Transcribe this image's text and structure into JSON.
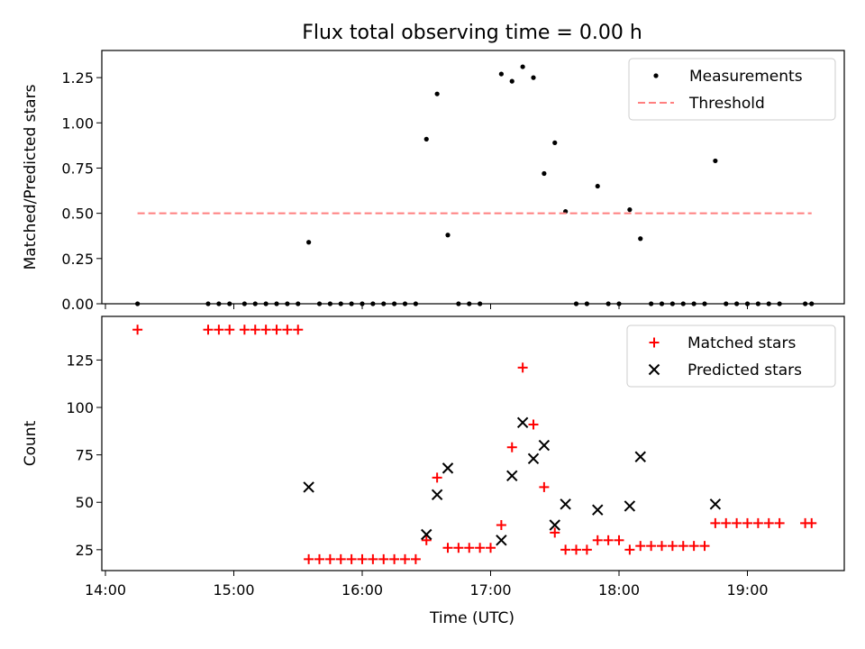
{
  "title": "Flux total observing time = 0.00 h",
  "xlabel": "Time (UTC)",
  "x_ticks": [
    {
      "t": "14:00",
      "label": "14:00"
    },
    {
      "t": "15:00",
      "label": "15:00"
    },
    {
      "t": "16:00",
      "label": "16:00"
    },
    {
      "t": "17:00",
      "label": "17:00"
    },
    {
      "t": "18:00",
      "label": "18:00"
    },
    {
      "t": "19:00",
      "label": "19:00"
    }
  ],
  "colors": {
    "measurements": "#000000",
    "threshold": "#ff7f7f",
    "matched": "#ff0000",
    "predicted": "#000000"
  },
  "chart_data": [
    {
      "type": "scatter",
      "ylabel": "Matched/Predicted stars",
      "ylim": [
        0,
        1.4
      ],
      "xlim": [
        "14:00",
        "19:45"
      ],
      "y_ticks": [
        "0.00",
        "0.25",
        "0.50",
        "0.75",
        "1.00",
        "1.25"
      ],
      "legend_position": "top-right",
      "series": [
        {
          "name": "Measurements",
          "marker": "dot",
          "points": [
            [
              "14:15",
              0
            ],
            [
              "14:48",
              0
            ],
            [
              "14:53",
              0
            ],
            [
              "14:58",
              0
            ],
            [
              "15:05",
              0
            ],
            [
              "15:10",
              0
            ],
            [
              "15:15",
              0
            ],
            [
              "15:20",
              0
            ],
            [
              "15:25",
              0
            ],
            [
              "15:30",
              0
            ],
            [
              "15:35",
              0.34
            ],
            [
              "15:40",
              0
            ],
            [
              "15:45",
              0
            ],
            [
              "15:50",
              0
            ],
            [
              "15:55",
              0
            ],
            [
              "16:00",
              0
            ],
            [
              "16:05",
              0
            ],
            [
              "16:10",
              0
            ],
            [
              "16:15",
              0
            ],
            [
              "16:20",
              0
            ],
            [
              "16:25",
              0
            ],
            [
              "16:30",
              0.91
            ],
            [
              "16:35",
              1.16
            ],
            [
              "16:40",
              0.38
            ],
            [
              "16:45",
              0
            ],
            [
              "16:50",
              0
            ],
            [
              "16:55",
              0
            ],
            [
              "17:05",
              1.27
            ],
            [
              "17:10",
              1.23
            ],
            [
              "17:15",
              1.31
            ],
            [
              "17:20",
              1.25
            ],
            [
              "17:25",
              0.72
            ],
            [
              "17:30",
              0.89
            ],
            [
              "17:35",
              0.51
            ],
            [
              "17:40",
              0
            ],
            [
              "17:45",
              0
            ],
            [
              "17:50",
              0.65
            ],
            [
              "17:55",
              0
            ],
            [
              "18:00",
              0
            ],
            [
              "18:05",
              0.52
            ],
            [
              "18:10",
              0.36
            ],
            [
              "18:15",
              0
            ],
            [
              "18:20",
              0
            ],
            [
              "18:25",
              0
            ],
            [
              "18:30",
              0
            ],
            [
              "18:35",
              0
            ],
            [
              "18:40",
              0
            ],
            [
              "18:45",
              0.79
            ],
            [
              "18:50",
              0
            ],
            [
              "18:55",
              0
            ],
            [
              "19:00",
              0
            ],
            [
              "19:05",
              0
            ],
            [
              "19:10",
              0
            ],
            [
              "19:15",
              0
            ],
            [
              "19:27",
              0
            ],
            [
              "19:30",
              0
            ]
          ]
        },
        {
          "name": "Threshold",
          "marker": "dashed-line",
          "points": [
            [
              "14:15",
              0.5
            ],
            [
              "19:30",
              0.5
            ]
          ]
        }
      ]
    },
    {
      "type": "scatter",
      "ylabel": "Count",
      "ylim": [
        14,
        148
      ],
      "xlim": [
        "14:00",
        "19:45"
      ],
      "y_ticks": [
        "25",
        "50",
        "75",
        "100",
        "125"
      ],
      "legend_position": "top-right",
      "series": [
        {
          "name": "Matched stars",
          "marker": "plus",
          "points": [
            [
              "14:15",
              141
            ],
            [
              "14:48",
              141
            ],
            [
              "14:53",
              141
            ],
            [
              "14:58",
              141
            ],
            [
              "15:05",
              141
            ],
            [
              "15:10",
              141
            ],
            [
              "15:15",
              141
            ],
            [
              "15:20",
              141
            ],
            [
              "15:25",
              141
            ],
            [
              "15:30",
              141
            ],
            [
              "15:35",
              20
            ],
            [
              "15:40",
              20
            ],
            [
              "15:45",
              20
            ],
            [
              "15:50",
              20
            ],
            [
              "15:55",
              20
            ],
            [
              "16:00",
              20
            ],
            [
              "16:05",
              20
            ],
            [
              "16:10",
              20
            ],
            [
              "16:15",
              20
            ],
            [
              "16:20",
              20
            ],
            [
              "16:25",
              20
            ],
            [
              "16:30",
              30
            ],
            [
              "16:35",
              63
            ],
            [
              "16:40",
              26
            ],
            [
              "16:45",
              26
            ],
            [
              "16:50",
              26
            ],
            [
              "16:55",
              26
            ],
            [
              "17:00",
              26
            ],
            [
              "17:05",
              38
            ],
            [
              "17:10",
              79
            ],
            [
              "17:15",
              121
            ],
            [
              "17:20",
              91
            ],
            [
              "17:25",
              58
            ],
            [
              "17:30",
              34
            ],
            [
              "17:35",
              25
            ],
            [
              "17:40",
              25
            ],
            [
              "17:45",
              25
            ],
            [
              "17:50",
              30
            ],
            [
              "17:55",
              30
            ],
            [
              "18:00",
              30
            ],
            [
              "18:05",
              25
            ],
            [
              "18:10",
              27
            ],
            [
              "18:15",
              27
            ],
            [
              "18:20",
              27
            ],
            [
              "18:25",
              27
            ],
            [
              "18:30",
              27
            ],
            [
              "18:35",
              27
            ],
            [
              "18:40",
              27
            ],
            [
              "18:45",
              39
            ],
            [
              "18:50",
              39
            ],
            [
              "18:55",
              39
            ],
            [
              "19:00",
              39
            ],
            [
              "19:05",
              39
            ],
            [
              "19:10",
              39
            ],
            [
              "19:15",
              39
            ],
            [
              "19:27",
              39
            ],
            [
              "19:30",
              39
            ]
          ]
        },
        {
          "name": "Predicted stars",
          "marker": "x",
          "points": [
            [
              "15:35",
              58
            ],
            [
              "16:30",
              33
            ],
            [
              "16:35",
              54
            ],
            [
              "16:40",
              68
            ],
            [
              "17:05",
              30
            ],
            [
              "17:10",
              64
            ],
            [
              "17:15",
              92
            ],
            [
              "17:20",
              73
            ],
            [
              "17:25",
              80
            ],
            [
              "17:30",
              38
            ],
            [
              "17:35",
              49
            ],
            [
              "17:50",
              46
            ],
            [
              "18:05",
              48
            ],
            [
              "18:10",
              74
            ],
            [
              "18:45",
              49
            ]
          ]
        }
      ]
    }
  ]
}
